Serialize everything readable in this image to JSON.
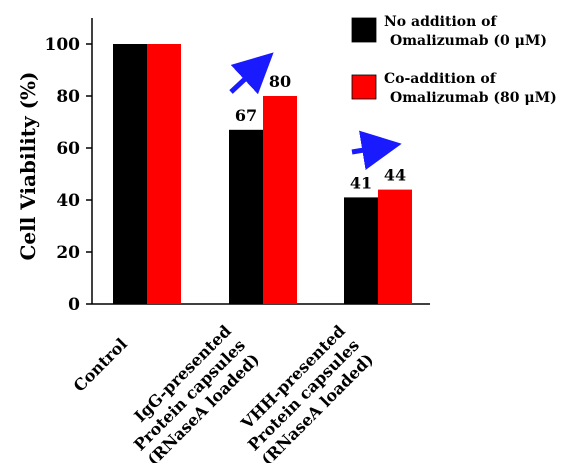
{
  "chart_data": {
    "type": "bar",
    "title": "",
    "xlabel": "",
    "ylabel": "Cell Viability (%)",
    "ylim": [
      0,
      110
    ],
    "yticks": [
      0,
      20,
      40,
      60,
      80,
      100
    ],
    "categories": [
      [
        "Control"
      ],
      [
        "IgG-presented",
        "Protein capsules",
        "(RNaseA loaded)"
      ],
      [
        "VHH-presented",
        "Protein capsules",
        "(RNaseA loaded)"
      ]
    ],
    "series": [
      {
        "name": "No addition of Omalizumab (0 μM)",
        "legend_lines": [
          "No addition of",
          "Omalizumab (0 μM)"
        ],
        "color": "#000000",
        "values": [
          100,
          67,
          41
        ]
      },
      {
        "name": "Co-addition of Omalizumab (80 μM)",
        "legend_lines": [
          "Co-addition of",
          "Omalizumab (80 μM)"
        ],
        "color": "#ff0000",
        "values": [
          100,
          80,
          44
        ]
      }
    ],
    "data_labels": [
      {
        "category_index": 1,
        "series_index": 0,
        "text": "67"
      },
      {
        "category_index": 1,
        "series_index": 1,
        "text": "80"
      },
      {
        "category_index": 2,
        "series_index": 0,
        "text": "41"
      },
      {
        "category_index": 2,
        "series_index": 1,
        "text": "44"
      }
    ],
    "annotations": [
      {
        "type": "arrow",
        "direction": "up-right",
        "category_index": 1,
        "color": "#1a1aff"
      },
      {
        "type": "arrow",
        "direction": "right",
        "category_index": 2,
        "color": "#1a1aff"
      }
    ],
    "grid": false,
    "legend_position": "top-right"
  }
}
